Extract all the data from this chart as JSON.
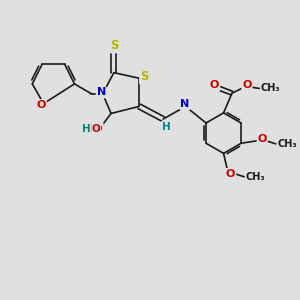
{
  "bg_color": "#e0e0e0",
  "bond_color": "#1a1a1a",
  "bond_width": 1.2,
  "atom_colors": {
    "S": "#b8b800",
    "N": "#0000cc",
    "O": "#cc0000",
    "H": "#008888",
    "C": "#1a1a1a"
  },
  "font_size": 7.5,
  "fig_size": [
    3.0,
    3.0
  ],
  "dpi": 100,
  "xlim": [
    0,
    10
  ],
  "ylim": [
    0,
    10
  ]
}
